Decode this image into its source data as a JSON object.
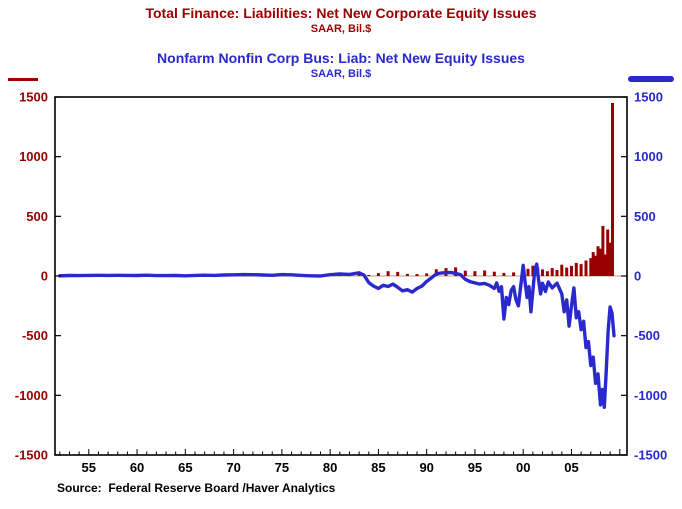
{
  "header": {
    "title1": "Total Finance: Liabilities: Net New Corporate Equity Issues",
    "subtitle1": "SAAR, Bil.$",
    "title2": "Nonfarm Nonfin Corp Bus: Liab: Net New Equity Issues",
    "subtitle2": "SAAR, Bil.$"
  },
  "footer": {
    "source": "Source:  Federal Reserve Board /Haver Analytics"
  },
  "colors": {
    "series1": "#990000",
    "series2": "#2929cc",
    "axis": "#000000",
    "zero_line": "#b9a27e",
    "background": "#ffffff"
  },
  "chart_data": {
    "type": "combo",
    "x_range": [
      1951.5,
      2010.75
    ],
    "ylim": [
      -1500,
      1500
    ],
    "y_ticks": [
      1500,
      1000,
      500,
      0,
      -500,
      -1000,
      -1500
    ],
    "x_ticks": [
      {
        "year": 1955,
        "label": "55"
      },
      {
        "year": 1960,
        "label": "60"
      },
      {
        "year": 1965,
        "label": "65"
      },
      {
        "year": 1970,
        "label": "70"
      },
      {
        "year": 1975,
        "label": "75"
      },
      {
        "year": 1980,
        "label": "80"
      },
      {
        "year": 1985,
        "label": "85"
      },
      {
        "year": 1990,
        "label": "90"
      },
      {
        "year": 1995,
        "label": "95"
      },
      {
        "year": 2000,
        "label": "00"
      },
      {
        "year": 2005,
        "label": "05"
      }
    ],
    "grid": "off",
    "legend": "line swatch top-left for series1, thick line swatch top-right for series2",
    "xlabel": "",
    "ylabel": "SAAR, Bil.$",
    "series": [
      {
        "name": "Total Finance: Liabilities: Net New Corporate Equity Issues",
        "type": "bar",
        "color": "#990000",
        "points": [
          [
            1952,
            4
          ],
          [
            1953,
            4
          ],
          [
            1954,
            5
          ],
          [
            1955,
            6
          ],
          [
            1956,
            6
          ],
          [
            1957,
            7
          ],
          [
            1958,
            7
          ],
          [
            1959,
            8
          ],
          [
            1960,
            6
          ],
          [
            1961,
            9
          ],
          [
            1962,
            6
          ],
          [
            1963,
            5
          ],
          [
            1964,
            6
          ],
          [
            1965,
            5
          ],
          [
            1966,
            7
          ],
          [
            1967,
            9
          ],
          [
            1968,
            8
          ],
          [
            1969,
            9
          ],
          [
            1970,
            11
          ],
          [
            1971,
            13
          ],
          [
            1972,
            12
          ],
          [
            1973,
            9
          ],
          [
            1974,
            8
          ],
          [
            1975,
            11
          ],
          [
            1976,
            10
          ],
          [
            1977,
            7
          ],
          [
            1978,
            6
          ],
          [
            1979,
            6
          ],
          [
            1980,
            12
          ],
          [
            1981,
            10
          ],
          [
            1982,
            14
          ],
          [
            1983,
            32
          ],
          [
            1984,
            8
          ],
          [
            1985,
            24
          ],
          [
            1986,
            40
          ],
          [
            1987,
            34
          ],
          [
            1988,
            18
          ],
          [
            1989,
            16
          ],
          [
            1990,
            22
          ],
          [
            1991,
            56
          ],
          [
            1992,
            66
          ],
          [
            1993,
            72
          ],
          [
            1994,
            44
          ],
          [
            1995,
            40
          ],
          [
            1996,
            46
          ],
          [
            1997,
            36
          ],
          [
            1998,
            26
          ],
          [
            1999,
            30
          ],
          [
            2000,
            34
          ],
          [
            2000.5,
            60
          ],
          [
            2001,
            86
          ],
          [
            2001.5,
            70
          ],
          [
            2002,
            55
          ],
          [
            2002.5,
            40
          ],
          [
            2003,
            66
          ],
          [
            2003.5,
            50
          ],
          [
            2004,
            95
          ],
          [
            2004.5,
            70
          ],
          [
            2005,
            85
          ],
          [
            2005.5,
            110
          ],
          [
            2006,
            100
          ],
          [
            2006.5,
            130
          ],
          [
            2007,
            150
          ],
          [
            2007.25,
            200
          ],
          [
            2007.5,
            170
          ],
          [
            2007.75,
            250
          ],
          [
            2008,
            230
          ],
          [
            2008.25,
            420
          ],
          [
            2008.5,
            180
          ],
          [
            2008.75,
            390
          ],
          [
            2009,
            280
          ],
          [
            2009.25,
            1450
          ]
        ]
      },
      {
        "name": "Nonfarm Nonfin Corp Bus: Liab: Net New Equity Issues",
        "type": "line",
        "color": "#2929cc",
        "points": [
          [
            1952,
            2
          ],
          [
            1953,
            4
          ],
          [
            1954,
            3
          ],
          [
            1955,
            5
          ],
          [
            1956,
            6
          ],
          [
            1957,
            5
          ],
          [
            1958,
            6
          ],
          [
            1959,
            5
          ],
          [
            1960,
            4
          ],
          [
            1961,
            7
          ],
          [
            1962,
            3
          ],
          [
            1963,
            3
          ],
          [
            1964,
            4
          ],
          [
            1965,
            2
          ],
          [
            1966,
            5
          ],
          [
            1967,
            7
          ],
          [
            1968,
            5
          ],
          [
            1969,
            8
          ],
          [
            1970,
            10
          ],
          [
            1971,
            12
          ],
          [
            1972,
            11
          ],
          [
            1973,
            8
          ],
          [
            1974,
            6
          ],
          [
            1975,
            12
          ],
          [
            1976,
            10
          ],
          [
            1977,
            5
          ],
          [
            1978,
            2
          ],
          [
            1979,
            0
          ],
          [
            1980,
            11
          ],
          [
            1981,
            17
          ],
          [
            1982,
            13
          ],
          [
            1983,
            27
          ],
          [
            1983.5,
            8
          ],
          [
            1984,
            -55
          ],
          [
            1984.5,
            -85
          ],
          [
            1985,
            -105
          ],
          [
            1985.5,
            -78
          ],
          [
            1986,
            -88
          ],
          [
            1986.5,
            -68
          ],
          [
            1987,
            -95
          ],
          [
            1987.5,
            -125
          ],
          [
            1988,
            -115
          ],
          [
            1988.5,
            -135
          ],
          [
            1989,
            -105
          ],
          [
            1989.5,
            -85
          ],
          [
            1990,
            -45
          ],
          [
            1990.5,
            -15
          ],
          [
            1991,
            18
          ],
          [
            1991.5,
            25
          ],
          [
            1992,
            28
          ],
          [
            1992.5,
            30
          ],
          [
            1993,
            22
          ],
          [
            1993.5,
            12
          ],
          [
            1994,
            -28
          ],
          [
            1994.5,
            -48
          ],
          [
            1995,
            -58
          ],
          [
            1995.5,
            -68
          ],
          [
            1996,
            -62
          ],
          [
            1996.5,
            -78
          ],
          [
            1997,
            -105
          ],
          [
            1997.25,
            -58
          ],
          [
            1997.5,
            -128
          ],
          [
            1997.75,
            -90
          ],
          [
            1998,
            -360
          ],
          [
            1998.25,
            -180
          ],
          [
            1998.5,
            -240
          ],
          [
            1998.75,
            -120
          ],
          [
            1999,
            -90
          ],
          [
            1999.25,
            -200
          ],
          [
            1999.5,
            -250
          ],
          [
            1999.75,
            -80
          ],
          [
            2000,
            90
          ],
          [
            2000.2,
            -60
          ],
          [
            2000.4,
            -180
          ],
          [
            2000.6,
            -90
          ],
          [
            2000.8,
            -300
          ],
          [
            2001,
            -120
          ],
          [
            2001.2,
            50
          ],
          [
            2001.4,
            100
          ],
          [
            2001.6,
            -40
          ],
          [
            2001.8,
            -150
          ],
          [
            2002,
            -60
          ],
          [
            2002.3,
            -130
          ],
          [
            2002.6,
            -50
          ],
          [
            2003,
            -100
          ],
          [
            2003.5,
            -60
          ],
          [
            2004,
            -150
          ],
          [
            2004.25,
            -300
          ],
          [
            2004.5,
            -200
          ],
          [
            2004.75,
            -420
          ],
          [
            2005,
            -250
          ],
          [
            2005.25,
            -100
          ],
          [
            2005.5,
            -350
          ],
          [
            2005.75,
            -300
          ],
          [
            2006,
            -450
          ],
          [
            2006.25,
            -380
          ],
          [
            2006.5,
            -600
          ],
          [
            2006.75,
            -550
          ],
          [
            2007,
            -750
          ],
          [
            2007.25,
            -680
          ],
          [
            2007.5,
            -900
          ],
          [
            2007.75,
            -820
          ],
          [
            2008,
            -1080
          ],
          [
            2008.2,
            -950
          ],
          [
            2008.4,
            -1100
          ],
          [
            2008.6,
            -800
          ],
          [
            2008.8,
            -450
          ],
          [
            2009,
            -260
          ],
          [
            2009.2,
            -310
          ],
          [
            2009.4,
            -500
          ]
        ]
      }
    ]
  }
}
